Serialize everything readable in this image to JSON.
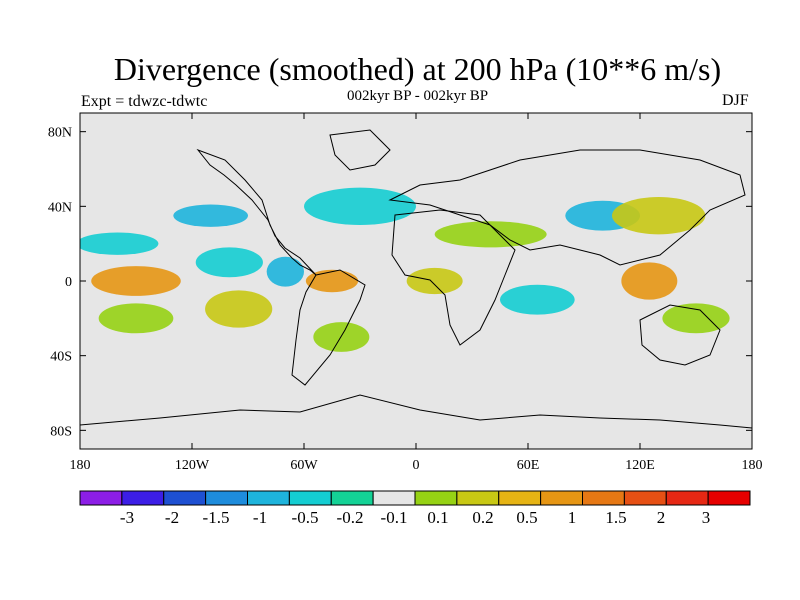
{
  "title": "Divergence (smoothed) at 200 hPa (10**6 m/s)",
  "left_label": "Expt = tdwzc-tdwtc",
  "center_label": "002kyr BP - 002kyr BP",
  "right_label": "DJF",
  "axes": {
    "x_ticks": [
      "180",
      "120W",
      "60W",
      "0",
      "60E",
      "120E",
      "180"
    ],
    "y_ticks": [
      "80N",
      "40N",
      "0",
      "40S",
      "80S"
    ],
    "lon_range": [
      -180,
      180
    ],
    "lat_range": [
      -90,
      90
    ]
  },
  "colorbar": {
    "colors": [
      "#8c1ee6",
      "#3c1ee6",
      "#1e50d2",
      "#1e8cdc",
      "#1eb4dc",
      "#14cdd2",
      "#14d296",
      "#e6e6e6",
      "#96d214",
      "#c8c814",
      "#e6b414",
      "#e69614",
      "#e67814",
      "#e65014",
      "#e62814",
      "#e60000"
    ],
    "labels": [
      "-3",
      "-2",
      "-1.5",
      "-1",
      "-0.5",
      "-0.2",
      "-0.1",
      "0.1",
      "0.2",
      "0.5",
      "1",
      "1.5",
      "2",
      "3"
    ]
  },
  "field_regions": [
    {
      "lon": -160,
      "lat": 20,
      "rx": 22,
      "ry": 6,
      "level": "neg1"
    },
    {
      "lon": -150,
      "lat": 0,
      "rx": 24,
      "ry": 8,
      "level": "pos3"
    },
    {
      "lon": -150,
      "lat": -20,
      "rx": 20,
      "ry": 8,
      "level": "pos1"
    },
    {
      "lon": -110,
      "lat": 35,
      "rx": 20,
      "ry": 6,
      "level": "neg2"
    },
    {
      "lon": -100,
      "lat": 10,
      "rx": 18,
      "ry": 8,
      "level": "neg1"
    },
    {
      "lon": -95,
      "lat": -15,
      "rx": 18,
      "ry": 10,
      "level": "pos2"
    },
    {
      "lon": -70,
      "lat": 5,
      "rx": 10,
      "ry": 8,
      "level": "neg2"
    },
    {
      "lon": -45,
      "lat": 0,
      "rx": 14,
      "ry": 6,
      "level": "pos3"
    },
    {
      "lon": -30,
      "lat": 40,
      "rx": 30,
      "ry": 10,
      "level": "neg1"
    },
    {
      "lon": -40,
      "lat": -30,
      "rx": 15,
      "ry": 8,
      "level": "pos1"
    },
    {
      "lon": 10,
      "lat": 0,
      "rx": 15,
      "ry": 7,
      "level": "pos2"
    },
    {
      "lon": 40,
      "lat": 25,
      "rx": 30,
      "ry": 7,
      "level": "pos1"
    },
    {
      "lon": 65,
      "lat": -10,
      "rx": 20,
      "ry": 8,
      "level": "neg1"
    },
    {
      "lon": 100,
      "lat": 35,
      "rx": 20,
      "ry": 8,
      "level": "neg2"
    },
    {
      "lon": 130,
      "lat": 35,
      "rx": 25,
      "ry": 10,
      "level": "pos2"
    },
    {
      "lon": 125,
      "lat": 0,
      "rx": 15,
      "ry": 10,
      "level": "pos3"
    },
    {
      "lon": 150,
      "lat": -20,
      "rx": 18,
      "ry": 8,
      "level": "pos1"
    }
  ]
}
